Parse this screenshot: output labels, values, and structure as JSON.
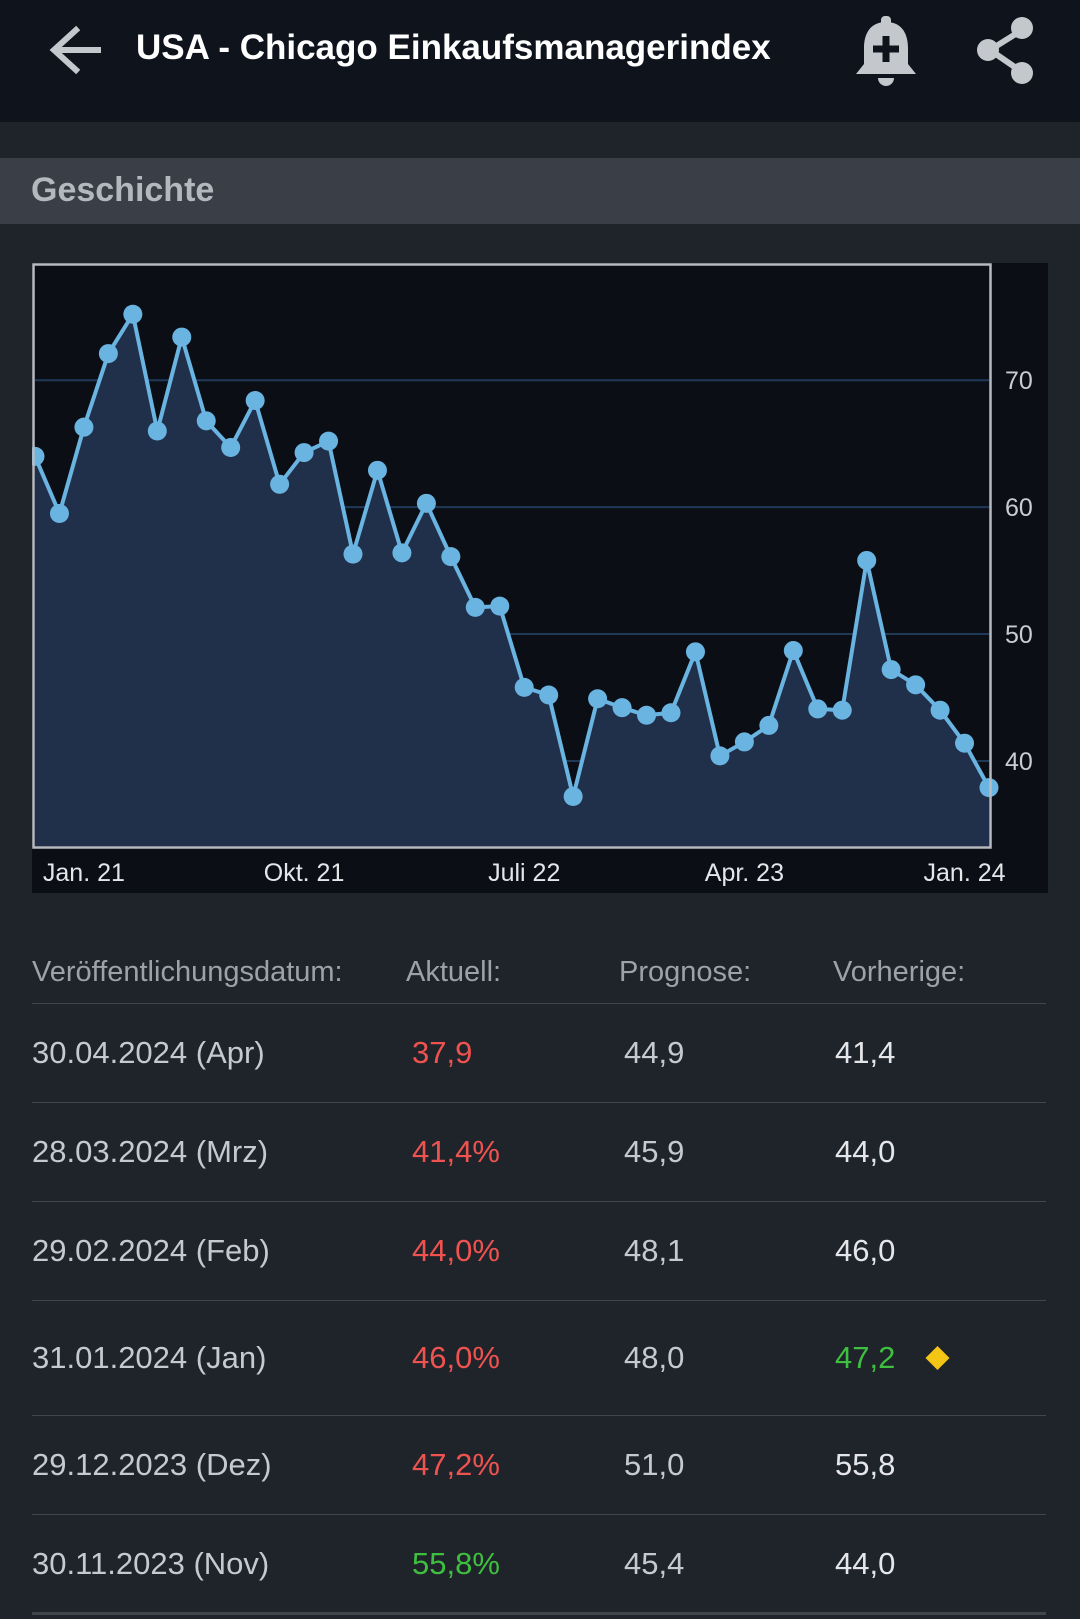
{
  "header": {
    "title": "USA - Chicago Einkaufsmanagerindex",
    "icons": {
      "back": "arrow-left-icon",
      "alert": "bell-plus-icon",
      "share": "share-icon"
    }
  },
  "section": {
    "title": "Geschichte"
  },
  "chart_data": {
    "type": "area",
    "title": "",
    "x_labels": [
      "Jan. 21",
      "Okt. 21",
      "Juli 22",
      "Apr. 23",
      "Jan. 24"
    ],
    "x_label_indices": [
      2,
      11,
      20,
      29,
      38
    ],
    "values": [
      64.0,
      59.5,
      66.3,
      72.1,
      75.2,
      66.0,
      73.4,
      66.8,
      64.7,
      68.4,
      61.8,
      64.3,
      65.2,
      56.3,
      62.9,
      56.4,
      60.3,
      56.1,
      52.1,
      52.2,
      45.8,
      45.2,
      37.2,
      44.9,
      44.2,
      43.6,
      43.8,
      48.6,
      40.4,
      41.5,
      42.8,
      48.7,
      44.1,
      44.0,
      55.8,
      47.2,
      46.0,
      44.0,
      41.4,
      37.9
    ],
    "ylim": [
      33.3,
      79.0
    ],
    "y_ticks": [
      40,
      50,
      60,
      70
    ],
    "grid": true,
    "colors": {
      "line": "#6ab4e2",
      "fill": "#21304a",
      "plot_bg": "#0b0f15",
      "grid": "#1f3a58"
    }
  },
  "table": {
    "headers": [
      "Veröffentlichungsdatum:",
      "Aktuell:",
      "Prognose:",
      "Vorherige:"
    ],
    "rows": [
      {
        "date": "30.04.2024 (Apr)",
        "actual": "37,9",
        "actual_color": "#ef5350",
        "forecast": "44,9",
        "previous": "41,4",
        "previous_color": "#e4e6e9",
        "revised": false
      },
      {
        "date": "28.03.2024 (Mrz)",
        "actual": "41,4%",
        "actual_color": "#ef5350",
        "forecast": "45,9",
        "previous": "44,0",
        "previous_color": "#e4e6e9",
        "revised": false
      },
      {
        "date": "29.02.2024 (Feb)",
        "actual": "44,0%",
        "actual_color": "#ef5350",
        "forecast": "48,1",
        "previous": "46,0",
        "previous_color": "#e4e6e9",
        "revised": false
      },
      {
        "date": "31.01.2024 (Jan)",
        "actual": "46,0%",
        "actual_color": "#ef5350",
        "forecast": "48,0",
        "previous": "47,2",
        "previous_color": "#3fbf3f",
        "revised": true
      },
      {
        "date": "29.12.2023 (Dez)",
        "actual": "47,2%",
        "actual_color": "#ef5350",
        "forecast": "51,0",
        "previous": "55,8",
        "previous_color": "#e4e6e9",
        "revised": false
      },
      {
        "date": "30.11.2023 (Nov)",
        "actual": "55,8%",
        "actual_color": "#3fbf3f",
        "forecast": "45,4",
        "previous": "44,0",
        "previous_color": "#e4e6e9",
        "revised": false
      }
    ]
  }
}
